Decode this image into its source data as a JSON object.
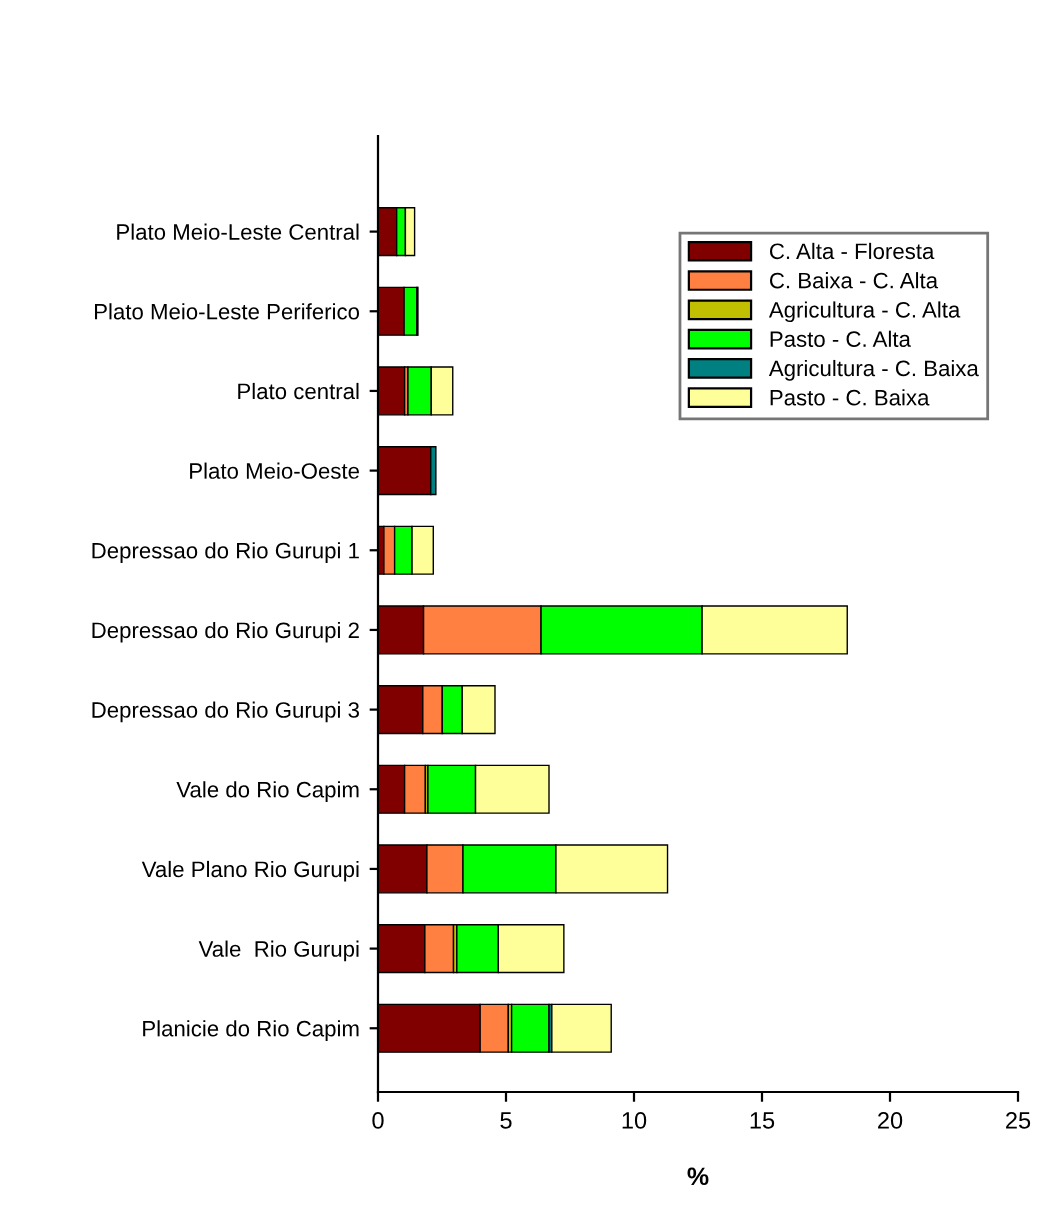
{
  "chart_data": {
    "type": "bar",
    "orientation": "horizontal",
    "stacked": true,
    "xlabel": "%",
    "xlim": [
      0,
      25
    ],
    "xticks": [
      0,
      5,
      10,
      15,
      20,
      25
    ],
    "grid": false,
    "legend": "top right",
    "categories": [
      "Plato Meio-Leste Central",
      "Plato Meio-Leste Periferico",
      "Plato central",
      "Plato Meio-Oeste",
      "Depressao do Rio Gurupi 1",
      "Depressao do Rio Gurupi 2",
      "Depressao do Rio Gurupi 3",
      "Vale do Rio Capim",
      "Vale Plano Rio Gurupi",
      "Vale  Rio Gurupi",
      "Planicie do Rio Capim"
    ],
    "series": [
      {
        "name": "C. Alta - Floresta",
        "color": "#800000",
        "values": [
          0.73,
          1.02,
          1.04,
          2.06,
          0.23,
          1.78,
          1.75,
          1.04,
          1.91,
          1.83,
          3.99
        ]
      },
      {
        "name": "C. Baixa - C. Alta",
        "color": "#ff8040",
        "values": [
          null,
          null,
          0.13,
          null,
          0.42,
          4.59,
          0.76,
          0.81,
          1.41,
          1.12,
          1.1
        ]
      },
      {
        "name": "Agricultura - C. Alta",
        "color": "#c0c000",
        "values": [
          null,
          null,
          null,
          null,
          null,
          null,
          null,
          0.1,
          null,
          0.13,
          0.13
        ]
      },
      {
        "name": "Pasto - C. Alta",
        "color": "#00ff00",
        "values": [
          0.34,
          0.5,
          0.91,
          null,
          0.68,
          6.29,
          0.78,
          1.86,
          3.63,
          1.62,
          1.46
        ]
      },
      {
        "name": "Agricultura - C. Baixa",
        "color": "#008080",
        "values": [
          null,
          0.04,
          null,
          0.2,
          null,
          null,
          null,
          null,
          null,
          null,
          0.11
        ]
      },
      {
        "name": "Pasto - C. Baixa",
        "color": "#ffff99",
        "values": [
          0.36,
          null,
          0.84,
          null,
          0.83,
          5.67,
          1.28,
          2.87,
          4.36,
          2.56,
          2.32
        ]
      }
    ]
  }
}
